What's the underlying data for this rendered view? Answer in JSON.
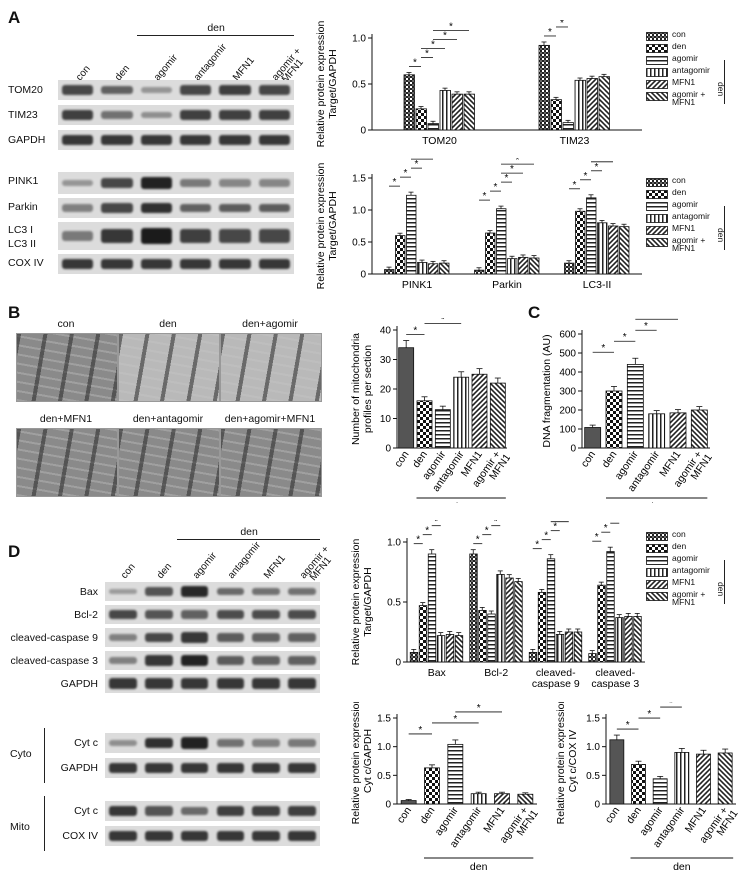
{
  "panels": {
    "A": "A",
    "B": "B",
    "C": "C",
    "D": "D"
  },
  "common": {
    "group_bracket": "den",
    "star": "*",
    "groups_short": [
      "con",
      "den",
      "agomir",
      "antagomir",
      "MFN1",
      "agomir +\nMFN1"
    ]
  },
  "panelA": {
    "blot_groups": [
      "con",
      "den",
      "agomir",
      "antagomir",
      "MFN1",
      "agomir + MFN1"
    ],
    "blot_rows_top": [
      "TOM20",
      "TIM23",
      "GAPDH"
    ],
    "blot_rows_bottom": [
      "PINK1",
      "Parkin",
      "LC3 I",
      "LC3 II",
      "COX IV"
    ]
  },
  "panelB": {
    "tem_labels": [
      "con",
      "den",
      "den+agomir",
      "den+MFN1",
      "den+antagomir",
      "den+agomir+MFN1"
    ]
  },
  "panelD": {
    "blot_groups": [
      "con",
      "den",
      "agomir",
      "antagomir",
      "MFN1",
      "agomir + MFN1"
    ],
    "blot_rows_top": [
      "Bax",
      "Bcl-2",
      "cleaved-caspase 9",
      "cleaved-caspase 3",
      "GAPDH"
    ],
    "cyto_label": "Cyto",
    "mito_label": "Mito",
    "blot_rows_cyto": [
      "Cyt c",
      "GAPDH"
    ],
    "blot_rows_mito": [
      "Cyt c",
      "COX IV"
    ]
  },
  "legend": [
    "con",
    "den",
    "agomir",
    "antagomir",
    "MFN1",
    "agomir +\nMFN1"
  ],
  "legend_side": "den",
  "chart_data": [
    {
      "id": "A1",
      "type": "bar",
      "ylabel": "Relative protein expression\nTarget/GAPDH",
      "categories": [
        "TOM20",
        "TIM23"
      ],
      "ylim": [
        0,
        1.0
      ],
      "yticks": [
        0,
        0.5,
        1.0
      ],
      "series": [
        {
          "name": "con",
          "values": [
            0.6,
            0.92
          ]
        },
        {
          "name": "den",
          "values": [
            0.23,
            0.33
          ]
        },
        {
          "name": "agomir",
          "values": [
            0.07,
            0.08
          ]
        },
        {
          "name": "antagomir",
          "values": [
            0.43,
            0.54
          ]
        },
        {
          "name": "MFN1",
          "values": [
            0.39,
            0.56
          ]
        },
        {
          "name": "agomir + MFN1",
          "values": [
            0.39,
            0.58
          ]
        }
      ]
    },
    {
      "id": "A2",
      "type": "bar",
      "ylabel": "Relative protein expression\nTarget/GAPDH",
      "categories": [
        "PINK1",
        "Parkin",
        "LC3-II"
      ],
      "ylim": [
        0,
        1.5
      ],
      "yticks": [
        0,
        0.5,
        1.0,
        1.5
      ],
      "series": [
        {
          "name": "con",
          "values": [
            0.07,
            0.06,
            0.17
          ]
        },
        {
          "name": "den",
          "values": [
            0.6,
            0.64,
            0.98
          ]
        },
        {
          "name": "agomir",
          "values": [
            1.23,
            1.02,
            1.19
          ]
        },
        {
          "name": "antagomir",
          "values": [
            0.18,
            0.24,
            0.8
          ]
        },
        {
          "name": "MFN1",
          "values": [
            0.16,
            0.26,
            0.75
          ]
        },
        {
          "name": "agomir + MFN1",
          "values": [
            0.17,
            0.25,
            0.74
          ]
        }
      ]
    },
    {
      "id": "B",
      "type": "bar",
      "ylabel": "Number of mitochondria\nprofiles per section",
      "categories": [
        "con",
        "den",
        "agomir",
        "antagomir",
        "MFN1",
        "agomir +\nMFN1"
      ],
      "bracket": "den",
      "ylim": [
        0,
        40
      ],
      "yticks": [
        0,
        10,
        20,
        30,
        40
      ],
      "values": [
        34,
        16,
        13,
        24,
        25,
        22
      ]
    },
    {
      "id": "C",
      "type": "bar",
      "ylabel": "DNA fragmentation (AU)",
      "categories": [
        "con",
        "den",
        "agomir",
        "antagomir",
        "MFN1",
        "agomir +\nMFN1"
      ],
      "bracket": "den",
      "ylim": [
        0,
        600
      ],
      "yticks": [
        0,
        100,
        200,
        300,
        400,
        500,
        600
      ],
      "values": [
        108,
        300,
        440,
        180,
        185,
        200
      ]
    },
    {
      "id": "D1",
      "type": "bar",
      "ylabel": "Relative protein expression\nTarget/GAPDH",
      "categories": [
        "Bax",
        "Bcl-2",
        "cleaved-\ncaspase 9",
        "cleaved-\ncaspase 3"
      ],
      "ylim": [
        0,
        1.0
      ],
      "yticks": [
        0,
        0.5,
        1.0
      ],
      "series": [
        {
          "name": "con",
          "values": [
            0.08,
            0.9,
            0.08,
            0.07
          ]
        },
        {
          "name": "den",
          "values": [
            0.47,
            0.43,
            0.58,
            0.64
          ]
        },
        {
          "name": "agomir",
          "values": [
            0.9,
            0.4,
            0.86,
            0.92
          ]
        },
        {
          "name": "antagomir",
          "values": [
            0.22,
            0.73,
            0.23,
            0.37
          ]
        },
        {
          "name": "MFN1",
          "values": [
            0.23,
            0.7,
            0.25,
            0.38
          ]
        },
        {
          "name": "agomir + MFN1",
          "values": [
            0.22,
            0.67,
            0.25,
            0.38
          ]
        }
      ]
    },
    {
      "id": "D2",
      "type": "bar",
      "ylabel": "Relative protein expression\nCyt c/GAPDH",
      "categories": [
        "con",
        "den",
        "agomir",
        "antagomir",
        "MFN1",
        "agomir +\nMFN1"
      ],
      "bracket": "den",
      "ylim": [
        0,
        1.5
      ],
      "yticks": [
        0,
        0.5,
        1.0,
        1.5
      ],
      "values": [
        0.06,
        0.63,
        1.04,
        0.18,
        0.18,
        0.17
      ]
    },
    {
      "id": "D3",
      "type": "bar",
      "ylabel": "Relative protein expression\nCyt c/COX IV",
      "categories": [
        "con",
        "den",
        "agomir",
        "antagomir",
        "MFN1",
        "agomir +\nMFN1"
      ],
      "bracket": "den",
      "ylim": [
        0,
        1.5
      ],
      "yticks": [
        0,
        0.5,
        1.0,
        1.5
      ],
      "values": [
        1.12,
        0.69,
        0.44,
        0.9,
        0.87,
        0.89
      ]
    }
  ]
}
